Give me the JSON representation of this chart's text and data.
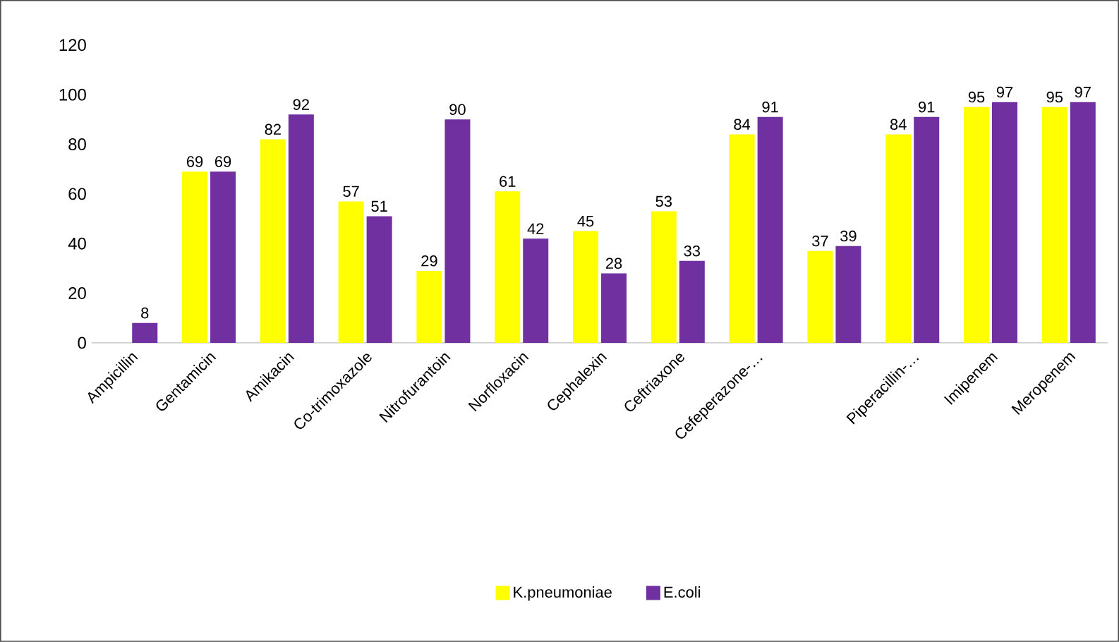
{
  "chart_data": {
    "type": "bar",
    "categories": [
      "Ampicillin",
      "Gentamicin",
      "Amikacin",
      "Co-trimoxazole",
      "Nitrofurantoin",
      "Norfloxacin",
      "Cephalexin",
      "Ceftriaxone",
      "Cefeperazone-…",
      null,
      "Piperacillin-…",
      "Imipenem",
      "Meropenem"
    ],
    "series": [
      {
        "name": "K.pneumoniae",
        "color": "#ffff00",
        "values": [
          null,
          69,
          82,
          57,
          29,
          61,
          45,
          53,
          84,
          37,
          84,
          95,
          95
        ]
      },
      {
        "name": "E.coli",
        "color": "#7030a0",
        "values": [
          8,
          69,
          92,
          51,
          90,
          42,
          28,
          33,
          91,
          39,
          91,
          97,
          97
        ]
      }
    ],
    "ylim": [
      0,
      120
    ],
    "yticks": [
      0,
      20,
      40,
      60,
      80,
      100,
      120
    ],
    "data_labels": true,
    "legend": "bottom",
    "grid": false
  }
}
